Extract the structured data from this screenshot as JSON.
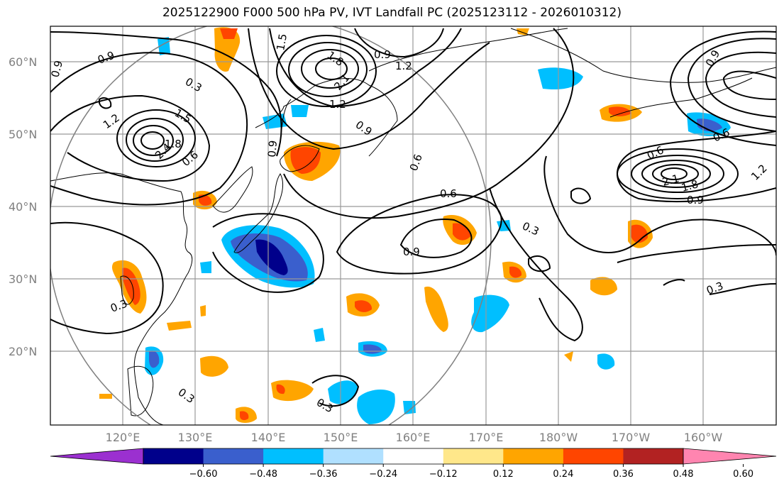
{
  "title": "2025122900 F000 500 hPa PV, IVT Landfall PC (2025123112 - 2026010312)",
  "lat_labels": [
    "60°N",
    "50°N",
    "40°N",
    "30°N",
    "20°N"
  ],
  "lon_labels": [
    "120°E",
    "130°E",
    "140°E",
    "150°E",
    "160°E",
    "170°E",
    "180°W",
    "170°W",
    "160°W"
  ],
  "colorbar": {
    "ticks": [
      "−0.60",
      "−0.48",
      "−0.36",
      "−0.24",
      "−0.12",
      "0.12",
      "0.24",
      "0.36",
      "0.48",
      "0.60"
    ],
    "colors": [
      "#9b30d0",
      "#00008b",
      "#3a5fcd",
      "#00bfff",
      "#b0e0ff",
      "#ffffff",
      "#ffe78a",
      "#ffa500",
      "#ff4500",
      "#b22222",
      "#ff85b0"
    ]
  },
  "contour_labels": [
    "0.9",
    "0.3",
    "1.5",
    "1.8",
    "2.1",
    "0.9",
    "1.2",
    "1.2",
    "0.9",
    "0.6",
    "0.6",
    "0.3",
    "0.9",
    "1.5",
    "1.2",
    "2.4",
    "1.8",
    "0.6",
    "0.9",
    "0.6",
    "0.3",
    "0.3",
    "0.3",
    "0.3",
    "0.9",
    "2.1",
    "1.8",
    "0.9",
    "0.6",
    "1.2",
    "0.9"
  ]
}
